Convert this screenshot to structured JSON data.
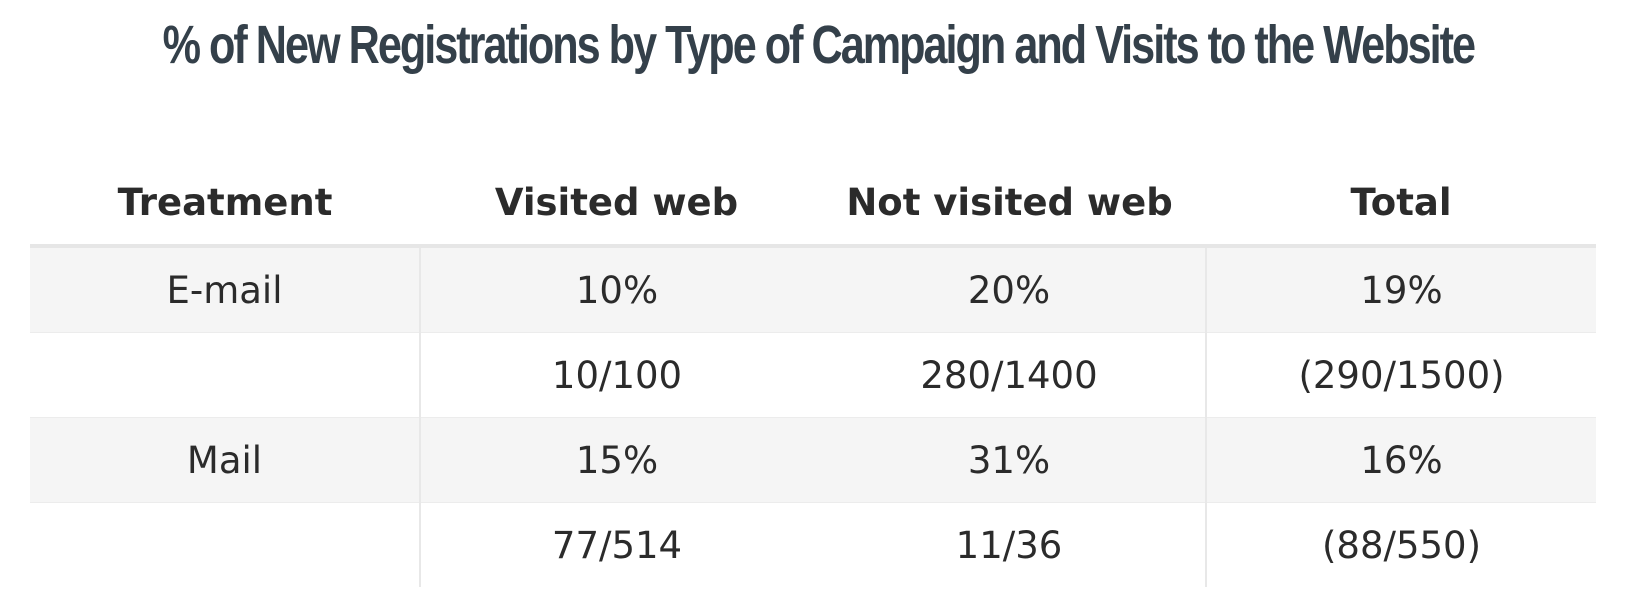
{
  "title": "% of New Registrations by Type of Campaign and Visits to the Website",
  "chart_data": {
    "type": "table",
    "title": "% of New Registrations by Type of Campaign and Visits to the Website",
    "columns": [
      "Treatment",
      "Visited web",
      "Not visited web",
      "Total"
    ],
    "rows": [
      {
        "cells": [
          "E-mail",
          "10%",
          "20%",
          "19%"
        ]
      },
      {
        "cells": [
          "",
          "10/100",
          "280/1400",
          "(290/1500)"
        ]
      },
      {
        "cells": [
          "Mail",
          "15%",
          "31%",
          "16%"
        ]
      },
      {
        "cells": [
          "",
          "77/514",
          "11/36",
          "(88/550)"
        ]
      }
    ]
  }
}
